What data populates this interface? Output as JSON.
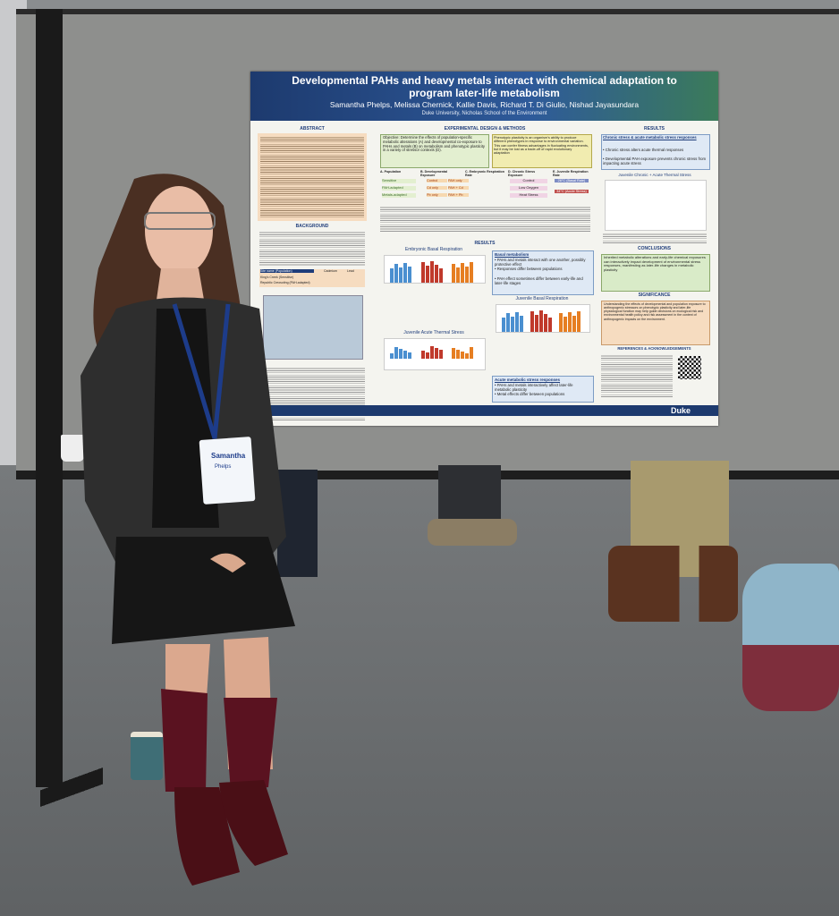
{
  "poster": {
    "title": "Developmental PAHs and heavy metals interact with chemical adaptation to program later-life metabolism",
    "authors": "Samantha Phelps, Melissa Chernick, Kallie Davis, Richard T. Di Giulio, Nishad Jayasundara",
    "affiliation": "Duke University, Nicholas School of the Environment",
    "abstract": {
      "heading": "ABSTRACT"
    },
    "background": {
      "heading": "BACKGROUND",
      "table": {
        "header": [
          "Site name (Population)",
          "Cadmium",
          "Lead"
        ],
        "rows": [
          "King's Creek (Sensitive)",
          "Republic Creosoting (PAH-adapted)"
        ]
      }
    },
    "design": {
      "heading": "EXPERIMENTAL DESIGN & METHODS",
      "objective": "Objective: Determine the effects of population-specific metabolic alterations (A) and developmental co-exposure to PAHs and metals (B) on metabolism and phenotypic plasticity in a variety of stressor contexts (D).",
      "plasticity": "Phenotypic plasticity is an organism's ability to produce different phenotypes in response to environmental variation. This can confer fitness advantages in fluctuating environments, but it may be lost as a trade-off of rapid evolutionary adaptation",
      "panels": [
        "A. Population",
        "B. Developmental Exposure",
        "C. Embryonic Respiration Rate",
        "D. Chronic Stress Exposure",
        "E. Juvenile Respiration Rate"
      ],
      "populations": [
        "Sensitive",
        "PAH-adapted",
        "Metals-adapted"
      ],
      "exposures": [
        "Control",
        "PAH only",
        "Cd only",
        "PAH + Cd",
        "Pb only",
        "PAH + Pb"
      ],
      "stress": [
        "Control",
        "Low Oxygen",
        "Heat Stress"
      ],
      "temps": [
        "26°C (Basal Rate)",
        "34°C (Acute Stress)"
      ]
    },
    "results": {
      "heading": "RESULTS",
      "charts": [
        "Embryonic Basal Respiration",
        "Juvenile Basal Respiration",
        "Juvenile Acute Thermal Stress"
      ],
      "basal": {
        "heading": "Basal metabolism",
        "bullets": [
          "PAHs and metals interact with one another, possibly protective effect",
          "Responses differ between populations",
          "PAH effect sometimes differ between early-life and later-life stages"
        ]
      },
      "acute": {
        "heading": "Acute metabolic stress responses",
        "bullets": [
          "PAHs and metals interactively affect later-life metabolic plasticity",
          "Metal effects differ between populations"
        ]
      }
    },
    "results2": {
      "heading": "RESULTS",
      "sub": "Chronic stress & acute metabolic stress responses",
      "bullets": [
        "Chronic stress alters acute thermal responses",
        "Developmental PAH exposure prevents chronic stress from impacting acute stress"
      ],
      "chart": "Juvenile Chronic + Acute Thermal Stress"
    },
    "conclusions": {
      "heading": "CONCLUSIONS",
      "text": "Inherited metabolic alterations and early-life chemical exposures can interactively impact development of environmental stress responses, manifesting as later-life changes in metabolic plasticity"
    },
    "significance": {
      "heading": "SIGNIFICANCE",
      "text": "Understanding the effects of developmental and population exposure to anthropogenic stressors on phenotypic plasticity and later-life physiological function may help guide decisions on ecological risk and environmental health policy and risk assessment in the context of anthropogenic impacts on the environment."
    },
    "references": {
      "heading": "REFERENCES & ACKNOWLEDGEMENTS"
    },
    "footer": "Duke"
  },
  "badge": {
    "first": "Samantha",
    "last": "Phelps"
  }
}
